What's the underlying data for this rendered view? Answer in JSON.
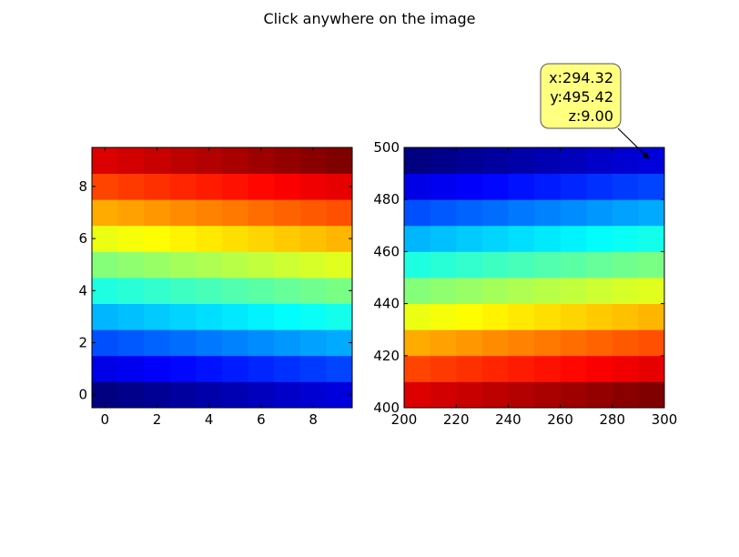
{
  "figure_title": "Click anywhere on the image",
  "chart_data": [
    {
      "type": "heatmap",
      "title": "",
      "xlabel": "",
      "ylabel": "",
      "xlim": [
        -0.5,
        9.5
      ],
      "ylim": [
        -0.5,
        9.5
      ],
      "x_ticks": [
        0,
        2,
        4,
        6,
        8
      ],
      "y_ticks": [
        0,
        2,
        4,
        6,
        8
      ],
      "x_tick_labels": [
        "0",
        "2",
        "4",
        "6",
        "8"
      ],
      "y_tick_labels": [
        "0",
        "2",
        "4",
        "6",
        "8"
      ],
      "rows": 10,
      "cols": 10,
      "colormap": "jet",
      "value_range": [
        0,
        99
      ],
      "values_formula": "value = row * 10 + col (row 0 at bottom)",
      "grid": false
    },
    {
      "type": "heatmap",
      "title": "",
      "xlabel": "",
      "ylabel": "",
      "xlim": [
        200,
        300
      ],
      "ylim": [
        400,
        500
      ],
      "x_ticks": [
        200,
        220,
        240,
        260,
        280,
        300
      ],
      "y_ticks": [
        400,
        420,
        440,
        460,
        480,
        500
      ],
      "x_tick_labels": [
        "200",
        "220",
        "240",
        "260",
        "280",
        "300"
      ],
      "y_tick_labels": [
        "400",
        "420",
        "440",
        "460",
        "480",
        "500"
      ],
      "rows": 10,
      "cols": 10,
      "colormap": "jet",
      "value_range": [
        0,
        99
      ],
      "values_formula": "value = (9 - row) * 10 + col (row 0 at bottom)",
      "grid": false,
      "annotation": {
        "lines": [
          "x:294.32",
          "y:495.42",
          "z:9.00"
        ],
        "point": [
          294.32,
          495.42
        ],
        "box_color": "#ffff80"
      }
    }
  ]
}
